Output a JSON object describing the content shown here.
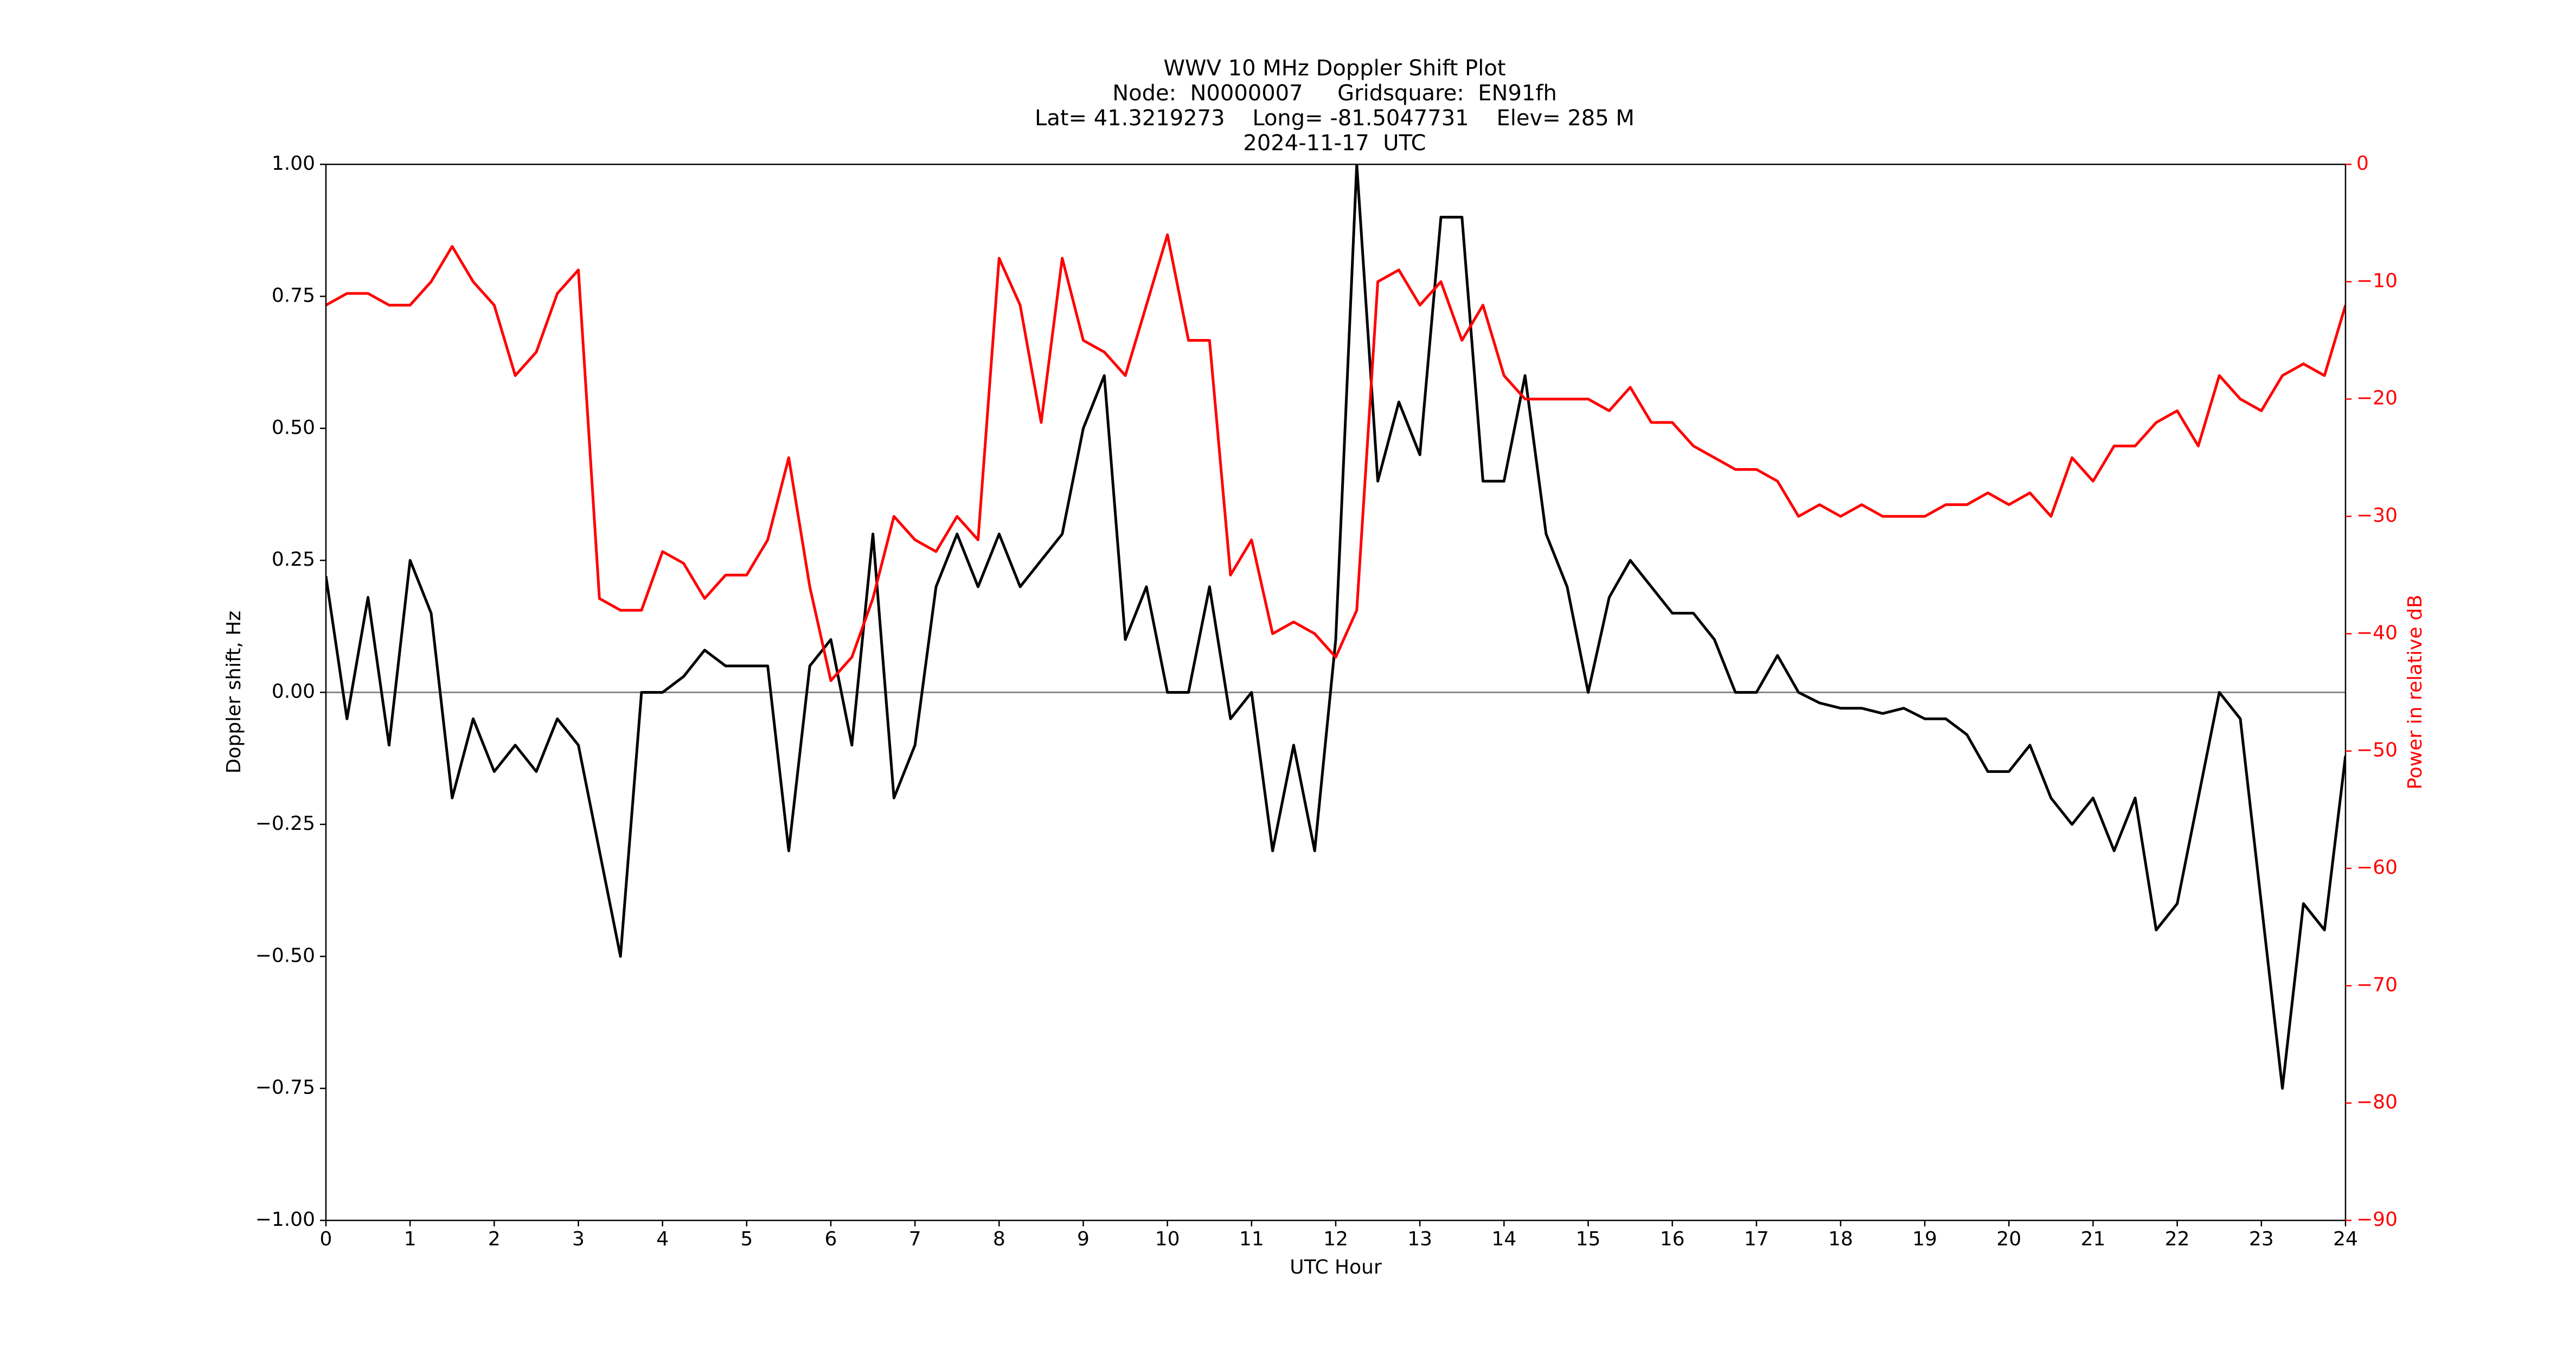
{
  "chart_data": {
    "type": "line",
    "title": [
      "WWV 10 MHz Doppler Shift Plot",
      "Node:  N0000007     Gridsquare:  EN91fh",
      "Lat= 41.3219273    Long= -81.5047731    Elev= 285 M",
      "2024-11-17  UTC"
    ],
    "xlabel": "UTC Hour",
    "ylabel": "Doppler shift, Hz",
    "y2label": "Power in relative dB",
    "x": [
      0,
      0.25,
      0.5,
      0.75,
      1,
      1.25,
      1.5,
      1.75,
      2,
      2.25,
      2.5,
      2.75,
      3,
      3.25,
      3.5,
      3.75,
      4,
      4.25,
      4.5,
      4.75,
      5,
      5.25,
      5.5,
      5.75,
      6,
      6.25,
      6.5,
      6.75,
      7,
      7.25,
      7.5,
      7.75,
      8,
      8.25,
      8.5,
      8.75,
      9,
      9.25,
      9.5,
      9.75,
      10,
      10.25,
      10.5,
      10.75,
      11,
      11.25,
      11.5,
      11.75,
      12,
      12.25,
      12.5,
      12.75,
      13,
      13.25,
      13.5,
      13.75,
      14,
      14.25,
      14.5,
      14.75,
      15,
      15.25,
      15.5,
      15.75,
      16,
      16.25,
      16.5,
      16.75,
      17,
      17.25,
      17.5,
      17.75,
      18,
      18.25,
      18.5,
      18.75,
      19,
      19.25,
      19.5,
      19.75,
      20,
      20.25,
      20.5,
      20.75,
      21,
      21.25,
      21.5,
      21.75,
      22,
      22.25,
      22.5,
      22.75,
      23,
      23.25,
      23.5,
      23.75,
      24
    ],
    "series": [
      {
        "color": "#000000",
        "values": [
          0.22,
          -0.05,
          0.18,
          -0.1,
          0.25,
          0.15,
          -0.2,
          -0.05,
          -0.15,
          -0.1,
          -0.15,
          -0.05,
          -0.1,
          -0.3,
          -0.5,
          0.0,
          0.0,
          0.03,
          0.08,
          0.05,
          0.05,
          0.05,
          -0.3,
          0.05,
          0.1,
          -0.1,
          0.3,
          -0.2,
          -0.1,
          0.2,
          0.3,
          0.2,
          0.3,
          0.2,
          0.25,
          0.3,
          0.5,
          0.6,
          0.1,
          0.2,
          0.0,
          0.0,
          0.2,
          -0.05,
          0.0,
          -0.3,
          -0.1,
          -0.3,
          0.1,
          1.0,
          0.4,
          0.55,
          0.45,
          0.9,
          0.9,
          0.4,
          0.4,
          0.6,
          0.3,
          0.2,
          0.0,
          0.18,
          0.25,
          0.2,
          0.15,
          0.15,
          0.1,
          0.0,
          0.0,
          0.07,
          0.0,
          -0.02,
          -0.03,
          -0.03,
          -0.04,
          -0.03,
          -0.05,
          -0.05,
          -0.08,
          -0.15,
          -0.15,
          -0.1,
          -0.2,
          -0.25,
          -0.2,
          -0.3,
          -0.2,
          -0.45,
          -0.4,
          -0.2,
          0.0,
          -0.05,
          -0.4,
          -0.75,
          -0.4,
          -0.45,
          -0.12
        ]
      },
      {
        "color": "#ff0000",
        "axis": "y2",
        "values": [
          -12,
          -11,
          -11,
          -12,
          -12,
          -10,
          -7,
          -10,
          -12,
          -18,
          -16,
          -11,
          -9,
          -37,
          -38,
          -38,
          -33,
          -34,
          -37,
          -35,
          -35,
          -32,
          -25,
          -36,
          -44,
          -42,
          -37,
          -30,
          -32,
          -33,
          -30,
          -32,
          -8,
          -12,
          -22,
          -8,
          -15,
          -16,
          -18,
          -12,
          -6,
          -15,
          -15,
          -35,
          -32,
          -40,
          -39,
          -40,
          -42,
          -38,
          -10,
          -9,
          -12,
          -10,
          -15,
          -12,
          -18,
          -20,
          -20,
          -20,
          -20,
          -21,
          -19,
          -22,
          -22,
          -24,
          -25,
          -26,
          -26,
          -27,
          -30,
          -29,
          -30,
          -29,
          -30,
          -30,
          -30,
          -29,
          -29,
          -28,
          -29,
          -28,
          -30,
          -25,
          -27,
          -24,
          -24,
          -22,
          -21,
          -24,
          -18,
          -20,
          -21,
          -18,
          -17,
          -18,
          -12
        ]
      }
    ],
    "reference_line": 0,
    "xlim": [
      0,
      24
    ],
    "xticks": [
      0,
      1,
      2,
      3,
      4,
      5,
      6,
      7,
      8,
      9,
      10,
      11,
      12,
      13,
      14,
      15,
      16,
      17,
      18,
      19,
      20,
      21,
      22,
      23,
      24
    ],
    "ylim": [
      -1,
      1
    ],
    "yticks": [
      {
        "value": -1,
        "label": "−1.00"
      },
      {
        "value": -0.75,
        "label": "−0.75"
      },
      {
        "value": -0.5,
        "label": "−0.50"
      },
      {
        "value": -0.25,
        "label": "−0.25"
      },
      {
        "value": 0,
        "label": "0.00"
      },
      {
        "value": 0.25,
        "label": "0.25"
      },
      {
        "value": 0.5,
        "label": "0.50"
      },
      {
        "value": 0.75,
        "label": "0.75"
      },
      {
        "value": 1,
        "label": "1.00"
      }
    ],
    "y2lim": [
      -90,
      0
    ],
    "y2ticks": [
      {
        "value": -90,
        "label": "−90"
      },
      {
        "value": -80,
        "label": "−80"
      },
      {
        "value": -70,
        "label": "−70"
      },
      {
        "value": -60,
        "label": "−60"
      },
      {
        "value": -50,
        "label": "−50"
      },
      {
        "value": -40,
        "label": "−40"
      },
      {
        "value": -30,
        "label": "−30"
      },
      {
        "value": -20,
        "label": "−20"
      },
      {
        "value": -10,
        "label": "−10"
      },
      0
    ]
  }
}
